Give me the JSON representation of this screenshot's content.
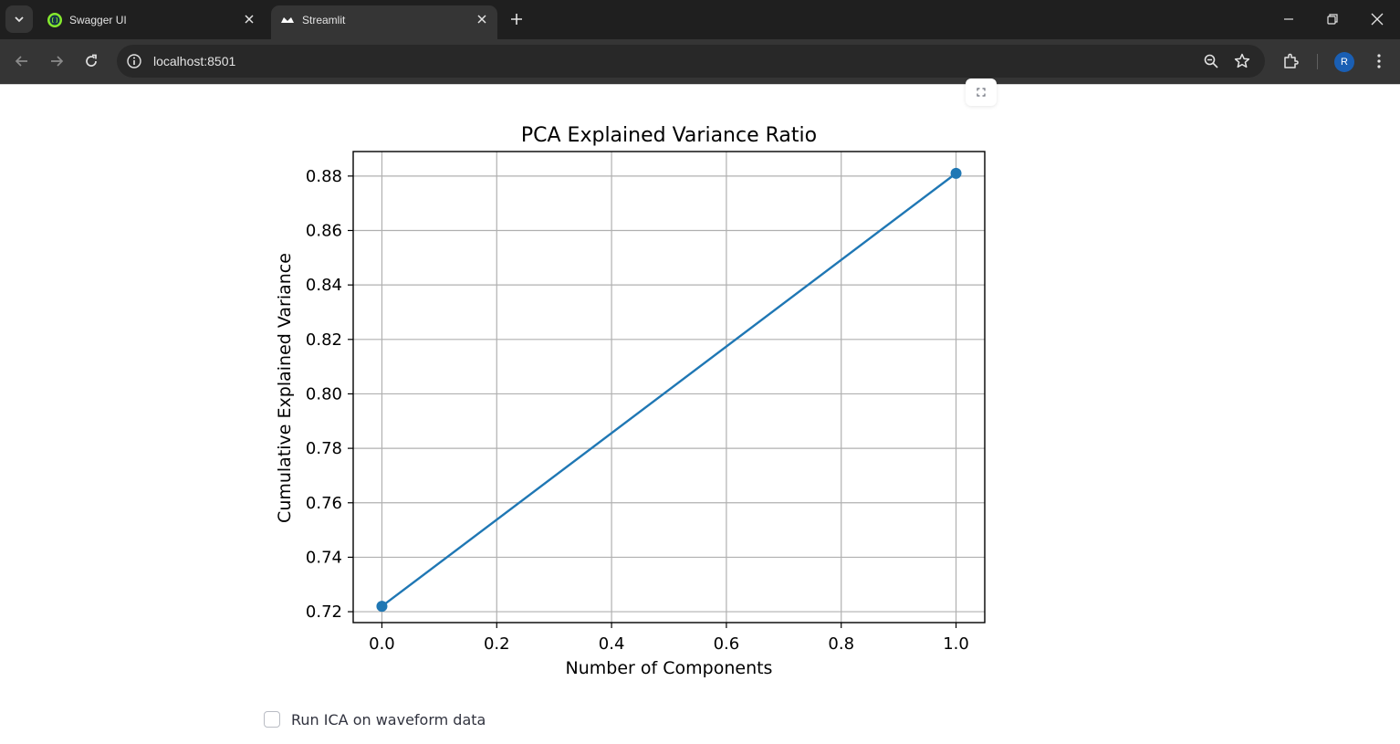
{
  "browser": {
    "tabs": [
      {
        "title": "Swagger UI",
        "active": false
      },
      {
        "title": "Streamlit",
        "active": true
      }
    ],
    "url": "localhost:8501",
    "profile_initial": "R",
    "icons": [
      "tab-search-icon",
      "swagger-favicon",
      "streamlit-favicon",
      "close-icon",
      "new-tab-icon",
      "minimize-icon",
      "restore-icon",
      "back-icon",
      "forward-icon",
      "reload-icon",
      "site-info-icon",
      "zoom-icon",
      "bookmark-star-icon",
      "extensions-icon",
      "menu-icon"
    ]
  },
  "colors": {
    "line": "#1f77b4",
    "grid": "#b0b0b0",
    "chrome_dark": "#1f1f1f",
    "chrome_toolbar": "#353535"
  },
  "chart_data": {
    "type": "line",
    "title": "PCA Explained Variance Ratio",
    "xlabel": "Number of Components",
    "ylabel": "Cumulative Explained Variance",
    "x": [
      0.0,
      1.0
    ],
    "y": [
      0.722,
      0.881
    ],
    "marker": "circle",
    "xlim": [
      -0.05,
      1.05
    ],
    "ylim": [
      0.716,
      0.889
    ],
    "xticks": [
      0.0,
      0.2,
      0.4,
      0.6,
      0.8,
      1.0
    ],
    "xtick_labels": [
      "0.0",
      "0.2",
      "0.4",
      "0.6",
      "0.8",
      "1.0"
    ],
    "yticks": [
      0.72,
      0.74,
      0.76,
      0.78,
      0.8,
      0.82,
      0.84,
      0.86,
      0.88
    ],
    "ytick_labels": [
      "0.72",
      "0.74",
      "0.76",
      "0.78",
      "0.80",
      "0.82",
      "0.84",
      "0.86",
      "0.88"
    ],
    "grid": true
  },
  "controls": {
    "ica_checkbox": {
      "label": "Run ICA on waveform data",
      "checked": false
    }
  }
}
